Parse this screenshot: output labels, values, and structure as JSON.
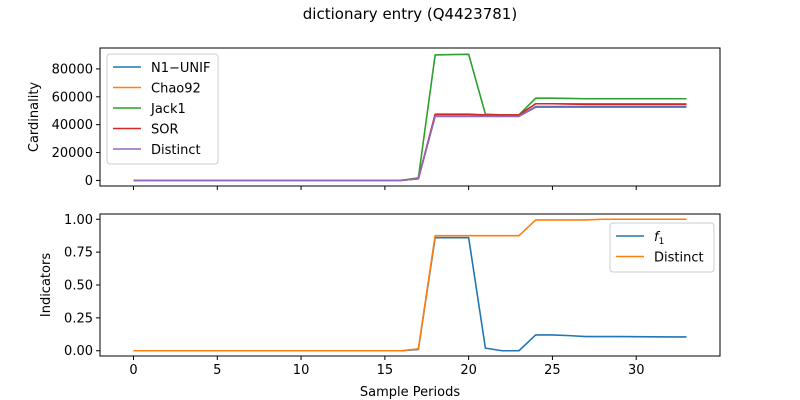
{
  "suptitle": "dictionary entry (Q4423781)",
  "colors": {
    "blue": "#1f77b4",
    "orange": "#ff7f0e",
    "green": "#2ca02c",
    "red": "#d62728",
    "purple": "#9467bd"
  },
  "chart_data": [
    {
      "type": "line",
      "ylabel": "Cardinality",
      "xlim": [
        -2,
        35
      ],
      "ylim": [
        -4000,
        95000
      ],
      "x_ticks": [
        0,
        5,
        10,
        15,
        20,
        25,
        30
      ],
      "y_ticks": [
        0,
        20000,
        40000,
        60000,
        80000
      ],
      "legend_position": "upper-left",
      "x": [
        0,
        1,
        2,
        3,
        4,
        5,
        6,
        7,
        8,
        9,
        10,
        11,
        12,
        13,
        14,
        15,
        16,
        17,
        18,
        19,
        20,
        21,
        22,
        23,
        24,
        25,
        26,
        27,
        28,
        29,
        30,
        31,
        32,
        33
      ],
      "series": [
        {
          "name": "N1−UNIF",
          "color": "#1f77b4",
          "values": [
            50,
            50,
            50,
            50,
            50,
            50,
            50,
            50,
            50,
            50,
            50,
            50,
            50,
            50,
            50,
            50,
            50,
            1200,
            46000,
            46000,
            46000,
            46000,
            46000,
            46000,
            53000,
            53000,
            53000,
            53000,
            53000,
            53000,
            53000,
            53000,
            53000,
            53000
          ]
        },
        {
          "name": "Chao92",
          "color": "#ff7f0e",
          "values": [
            50,
            50,
            50,
            50,
            50,
            50,
            50,
            50,
            50,
            50,
            50,
            50,
            50,
            50,
            50,
            50,
            50,
            1200,
            47000,
            47000,
            47000,
            47000,
            47000,
            47000,
            55000,
            55000,
            55000,
            55000,
            55000,
            55000,
            55000,
            55000,
            55000,
            55000
          ]
        },
        {
          "name": "Jack1",
          "color": "#2ca02c",
          "values": [
            50,
            50,
            50,
            50,
            50,
            50,
            50,
            50,
            50,
            50,
            50,
            50,
            50,
            50,
            50,
            50,
            100,
            1800,
            90000,
            90300,
            90500,
            47500,
            47000,
            47000,
            59000,
            59000,
            58800,
            58600,
            58600,
            58600,
            58600,
            58600,
            58600,
            58600
          ]
        },
        {
          "name": "SOR",
          "color": "#d62728",
          "values": [
            50,
            50,
            50,
            50,
            50,
            50,
            50,
            50,
            50,
            50,
            50,
            50,
            50,
            50,
            50,
            50,
            50,
            1200,
            47500,
            47500,
            47500,
            47000,
            47000,
            47000,
            55000,
            55000,
            54800,
            54600,
            54600,
            54600,
            54600,
            54600,
            54600,
            54600
          ]
        },
        {
          "name": "Distinct",
          "color": "#9467bd",
          "values": [
            50,
            50,
            50,
            50,
            50,
            50,
            50,
            50,
            50,
            50,
            50,
            50,
            50,
            50,
            50,
            50,
            50,
            1200,
            46000,
            46000,
            46000,
            46000,
            46000,
            46000,
            52500,
            52500,
            52500,
            52500,
            52500,
            52500,
            52500,
            52500,
            52500,
            52500
          ]
        }
      ]
    },
    {
      "type": "line",
      "xlabel": "Sample Periods",
      "ylabel": "Indicators",
      "xlim": [
        -2,
        35
      ],
      "ylim": [
        -0.04,
        1.04
      ],
      "x_ticks": [
        0,
        5,
        10,
        15,
        20,
        25,
        30
      ],
      "y_ticks": [
        0.0,
        0.25,
        0.5,
        0.75,
        1.0
      ],
      "legend_position": "upper-right",
      "x": [
        0,
        1,
        2,
        3,
        4,
        5,
        6,
        7,
        8,
        9,
        10,
        11,
        12,
        13,
        14,
        15,
        16,
        17,
        18,
        19,
        20,
        21,
        22,
        23,
        24,
        25,
        26,
        27,
        28,
        29,
        30,
        31,
        32,
        33
      ],
      "series": [
        {
          "name": "f",
          "name_sub": "1",
          "color": "#1f77b4",
          "values": [
            0,
            0,
            0,
            0,
            0,
            0,
            0,
            0,
            0,
            0,
            0,
            0,
            0,
            0,
            0,
            0,
            0,
            0.01,
            0.86,
            0.86,
            0.86,
            0.02,
            0.0,
            0.0,
            0.12,
            0.12,
            0.115,
            0.108,
            0.108,
            0.108,
            0.107,
            0.106,
            0.105,
            0.105
          ]
        },
        {
          "name": "Distinct",
          "color": "#ff7f0e",
          "values": [
            0,
            0,
            0,
            0,
            0,
            0,
            0,
            0,
            0,
            0,
            0,
            0,
            0,
            0,
            0,
            0,
            0,
            0.015,
            0.875,
            0.875,
            0.875,
            0.875,
            0.875,
            0.875,
            0.995,
            0.995,
            0.995,
            0.995,
            1.0,
            1.0,
            1.0,
            1.0,
            1.0,
            1.0
          ]
        }
      ]
    }
  ]
}
